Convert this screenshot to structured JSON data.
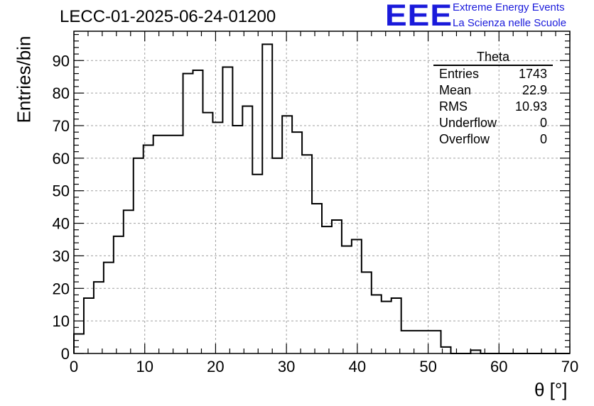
{
  "header": {
    "title": "LECC-01-2025-06-24-01200",
    "logo_text": "EEE",
    "logo_line1": "Extreme Energy Events",
    "logo_line2": "La Scienza nelle Scuole",
    "brand_color": "#1a1adb"
  },
  "stats_box": {
    "title": "Theta",
    "rows": [
      {
        "label": "Entries",
        "value": "1743"
      },
      {
        "label": "Mean",
        "value": "22.9"
      },
      {
        "label": "RMS",
        "value": "10.93"
      },
      {
        "label": "Underflow",
        "value": "0"
      },
      {
        "label": "Overflow",
        "value": "0"
      }
    ]
  },
  "chart_data": {
    "type": "bar",
    "subtype": "histogram-step",
    "title": "LECC-01-2025-06-24-01200",
    "xlabel": "θ [°]",
    "ylabel": "Entries/bin",
    "xlim": [
      0,
      70
    ],
    "ylim": [
      0,
      99
    ],
    "bin_edges": [
      0,
      1.4,
      2.8,
      4.2,
      5.6,
      7.0,
      8.4,
      9.8,
      11.2,
      12.6,
      14.0,
      15.4,
      16.8,
      18.2,
      19.6,
      21.0,
      22.4,
      23.8,
      25.2,
      26.6,
      28.0,
      29.4,
      30.8,
      32.2,
      33.6,
      35.0,
      36.4,
      37.8,
      39.2,
      40.6,
      42.0,
      43.4,
      44.8,
      46.2,
      47.6,
      49.0,
      50.4,
      51.8,
      53.2,
      54.6,
      56.0,
      57.4,
      58.8,
      60.2,
      61.6,
      63.0,
      64.4,
      65.8,
      67.2,
      68.6,
      70.0
    ],
    "values": [
      6,
      17,
      22,
      28,
      36,
      44,
      60,
      64,
      67,
      67,
      67,
      86,
      87,
      74,
      71,
      88,
      70,
      76,
      55,
      95,
      60,
      73,
      68,
      61,
      46,
      39,
      41,
      33,
      35,
      25,
      18,
      16,
      17,
      7,
      7,
      7,
      7,
      2,
      0,
      0,
      1,
      0,
      0,
      0,
      0,
      0,
      0,
      0,
      0,
      0
    ],
    "xticks": [
      0,
      10,
      20,
      30,
      40,
      50,
      60,
      70
    ],
    "yticks": [
      0,
      10,
      20,
      30,
      40,
      50,
      60,
      70,
      80,
      90
    ],
    "grid": true,
    "line_color": "#000000",
    "grid_color": "#a0a0a0"
  }
}
